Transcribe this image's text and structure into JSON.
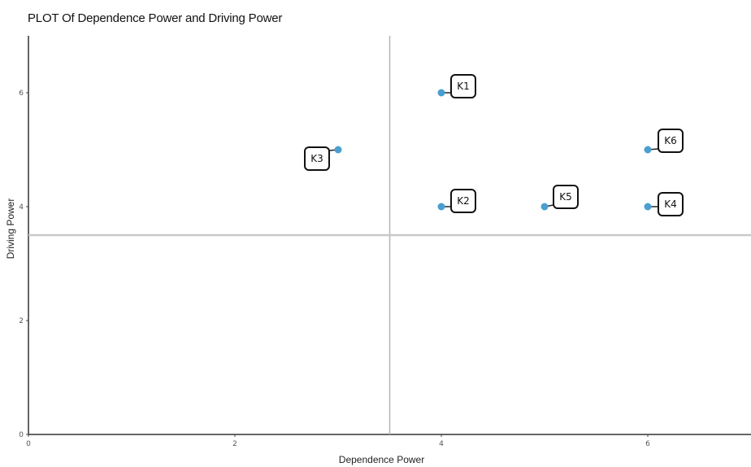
{
  "chart_data": {
    "type": "scatter",
    "title": "PLOT Of Dependence Power and Driving Power",
    "xlabel": "Dependence Power",
    "ylabel": "Driving Power",
    "xlim": [
      0,
      7
    ],
    "ylim": [
      0,
      7
    ],
    "x_ticks": [
      0,
      2,
      4,
      6
    ],
    "y_ticks": [
      0,
      2,
      4,
      6
    ],
    "grid": false,
    "reference_lines": {
      "x": 3.5,
      "y": 3.5
    },
    "point_color": "#4a9fd0",
    "points": [
      {
        "label": "K1",
        "x": 4,
        "y": 6
      },
      {
        "label": "K2",
        "x": 4,
        "y": 4
      },
      {
        "label": "K3",
        "x": 3,
        "y": 5
      },
      {
        "label": "K4",
        "x": 6,
        "y": 4
      },
      {
        "label": "K5",
        "x": 5,
        "y": 4
      },
      {
        "label": "K6",
        "x": 6,
        "y": 5
      }
    ]
  }
}
